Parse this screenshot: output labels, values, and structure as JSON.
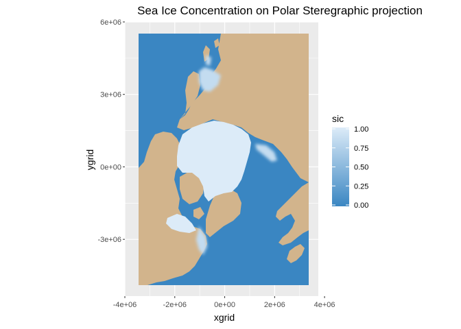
{
  "chart_data": {
    "type": "heatmap",
    "title": "Sea Ice Concentration on Polar Steregraphic projection",
    "xlabel": "xgrid",
    "ylabel": "ygrid",
    "xlim": [
      -4000000,
      3750000
    ],
    "ylim": [
      -5350000,
      6000000
    ],
    "x_ticks": [
      {
        "value": -4000000,
        "label": "-4e+06"
      },
      {
        "value": -2000000,
        "label": "-2e+06"
      },
      {
        "value": 0,
        "label": "0e+00"
      },
      {
        "value": 2000000,
        "label": "2e+06"
      },
      {
        "value": 4000000,
        "label": "4e+06"
      }
    ],
    "y_ticks": [
      {
        "value": 6000000,
        "label": "6e+06"
      },
      {
        "value": 3000000,
        "label": "3e+06"
      },
      {
        "value": 0,
        "label": "0e+00"
      },
      {
        "value": -3000000,
        "label": "-3e+06"
      }
    ],
    "grid": true,
    "fill_variable": "sic",
    "legend": {
      "title": "sic",
      "position": "right",
      "labels": [
        "1.00",
        "0.75",
        "0.50",
        "0.25",
        "0.00"
      ],
      "range": [
        0,
        1
      ],
      "color_low": "#3a86c2",
      "color_high": "#dcebf8"
    },
    "colors": {
      "ocean": "#3a86c2",
      "ice": "#dcebf8",
      "land": "#d2b48c",
      "panel_background": "#ebebeb",
      "gridline": "#ffffff"
    }
  }
}
